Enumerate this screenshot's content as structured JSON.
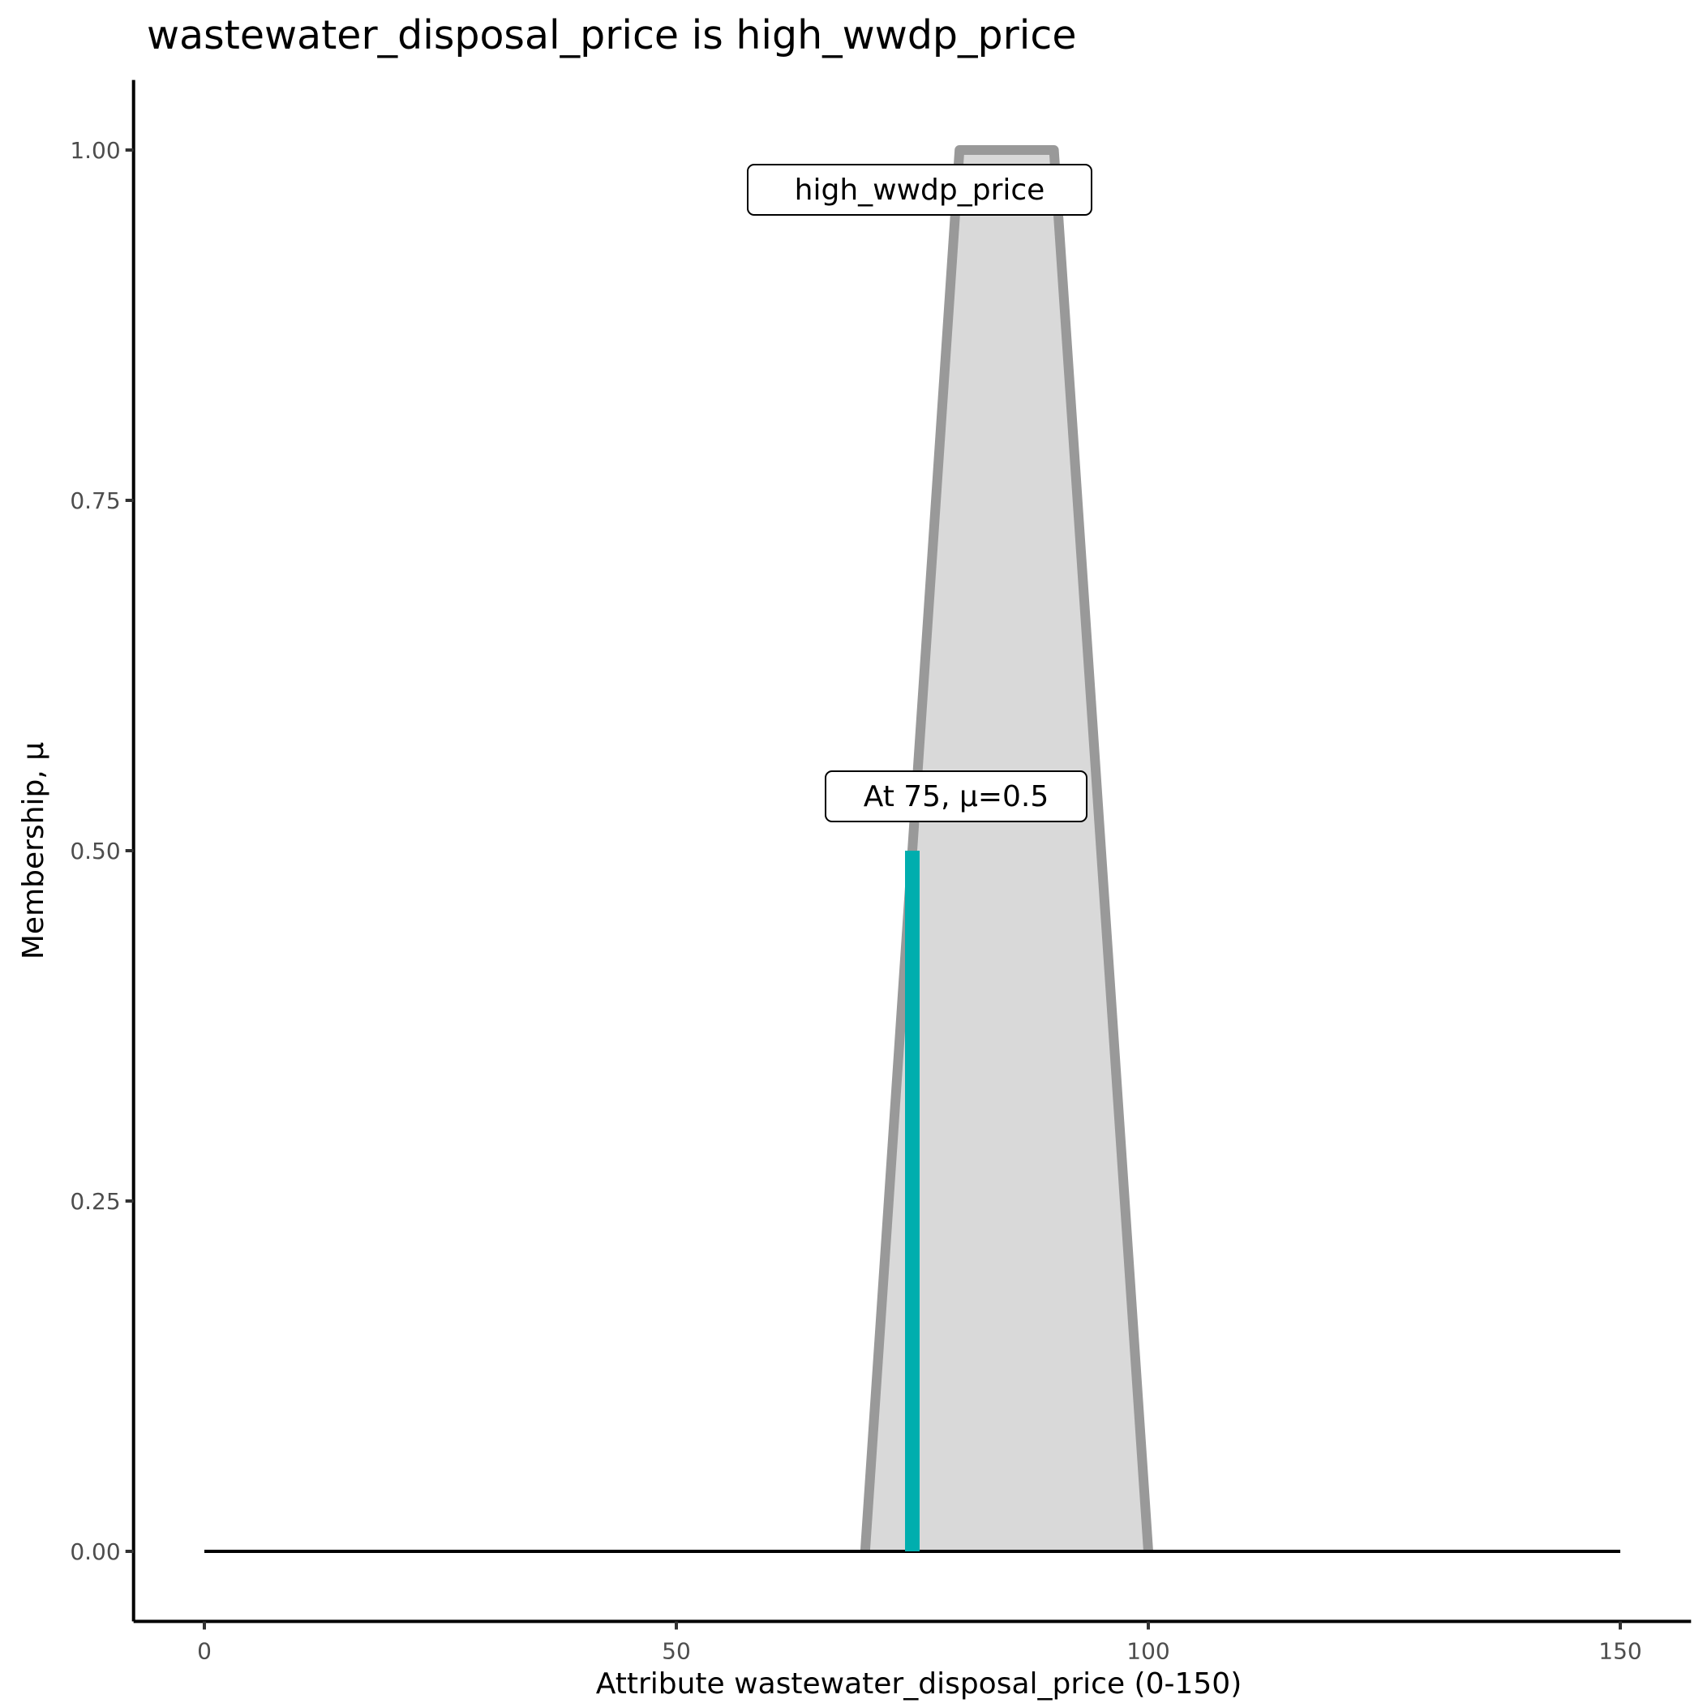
{
  "chart_data": {
    "type": "area",
    "title": "wastewater_disposal_price is high_wwdp_price",
    "xlabel": "Attribute wastewater_disposal_price (0-150)",
    "ylabel": "Membership, μ",
    "xlim": [
      -7.5,
      157.5
    ],
    "ylim": [
      -0.05,
      1.05
    ],
    "x_ticks": [
      0,
      50,
      100,
      150
    ],
    "x_tick_labels": [
      "0",
      "50",
      "100",
      "150"
    ],
    "y_ticks": [
      0,
      0.25,
      0.5,
      0.75,
      1
    ],
    "y_tick_labels": [
      "0.00",
      "0.25",
      "0.50",
      "0.75",
      "1.00"
    ],
    "grid": false,
    "baseline": {
      "x": [
        0,
        150
      ],
      "y": 0
    },
    "membership_function": {
      "name": "high_wwdp_price",
      "x": [
        70,
        80,
        90,
        100
      ],
      "y": [
        0,
        1,
        1,
        0
      ]
    },
    "evaluation": {
      "x": 75,
      "mu": 0.5
    },
    "annotations": {
      "set_label": "high_wwdp_price",
      "point_label": "At 75, μ=0.5"
    },
    "colors": {
      "outline": "#999999",
      "fill": "#d9d9d9",
      "evaluation_line": "#00aeae",
      "baseline": "#000000"
    }
  }
}
